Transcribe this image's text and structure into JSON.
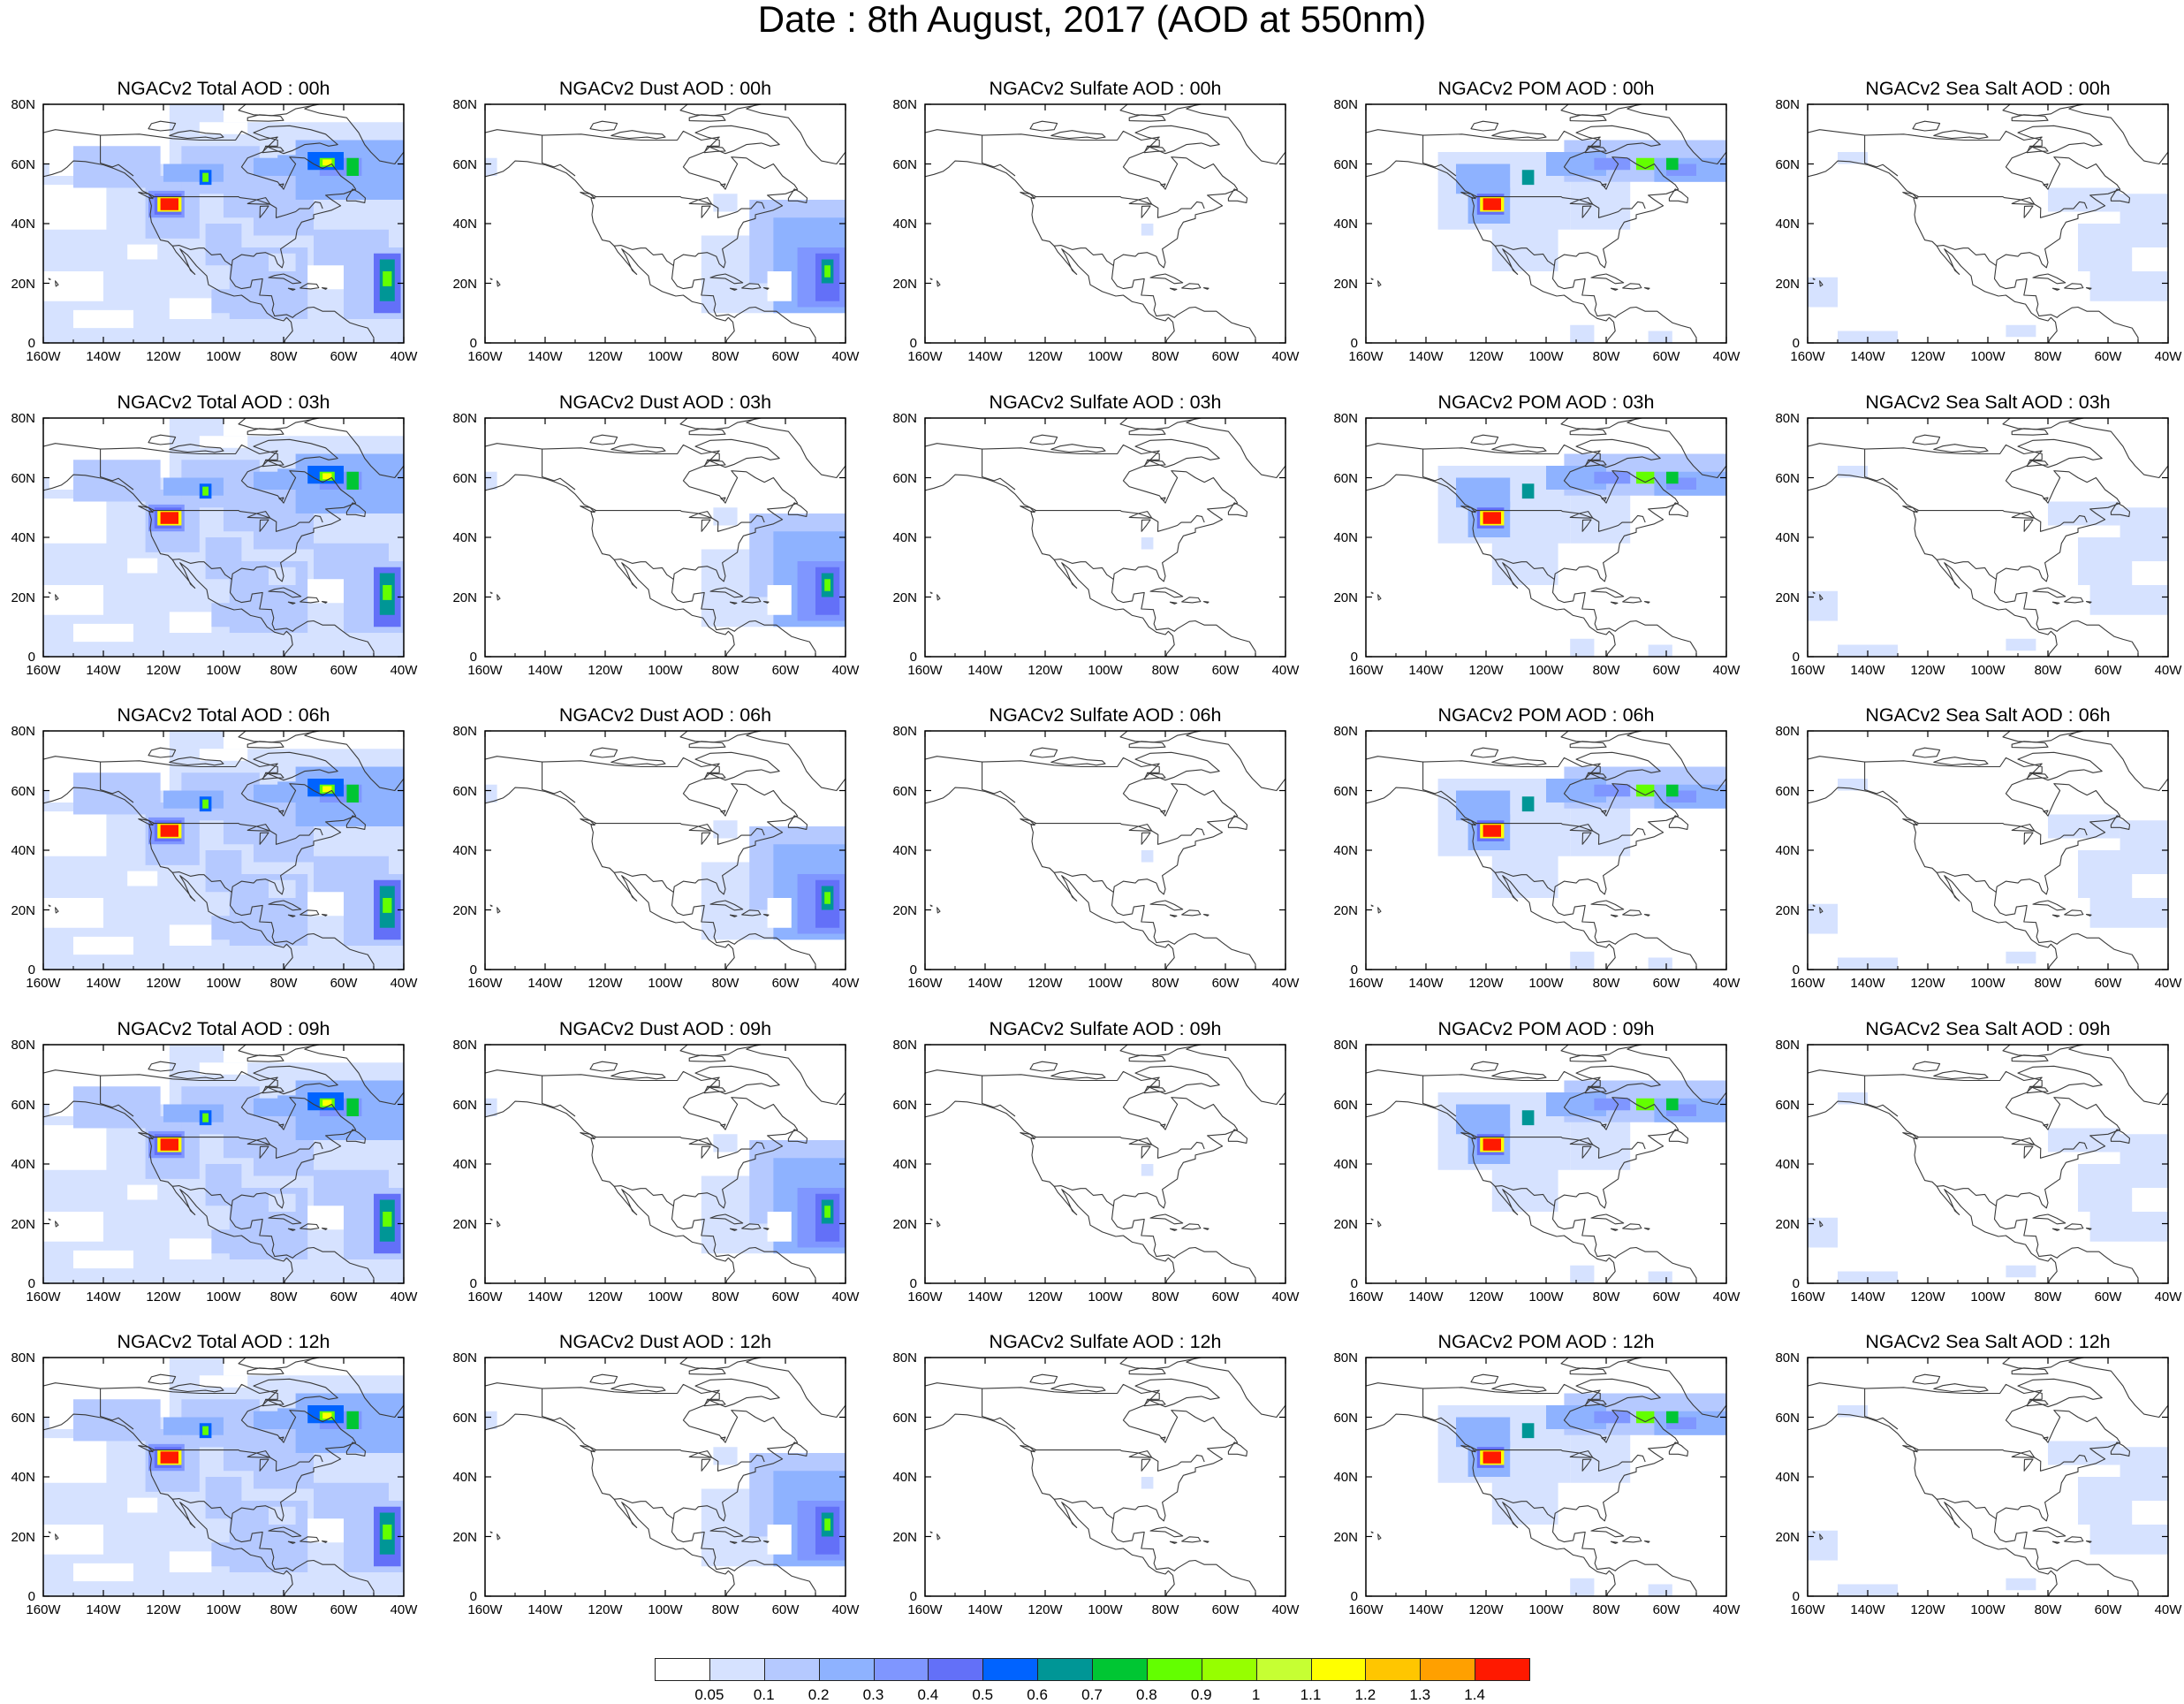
{
  "title": "Date : 8th August, 2017 (AOD at 550nm)",
  "colorbar": {
    "colors": [
      "#ffffff",
      "#d6e2ff",
      "#b5c9ff",
      "#8eb2ff",
      "#7f96ff",
      "#6370f8",
      "#0063ff",
      "#009696",
      "#00c633",
      "#63ff00",
      "#96ff00",
      "#c6ff33",
      "#ffff00",
      "#ffc600",
      "#ffa000",
      "#ff7c00",
      "#ff1900"
    ],
    "labels": [
      "0.05",
      "0.1",
      "0.2",
      "0.3",
      "0.4",
      "0.5",
      "0.6",
      "0.7",
      "0.8",
      "0.9",
      "1",
      "1.1",
      "1.2",
      "1.3",
      "1.4"
    ]
  },
  "axes": {
    "lon_ticks": [
      "160W",
      "140W",
      "120W",
      "100W",
      "80W",
      "60W",
      "40W"
    ],
    "lat_ticks": [
      "0",
      "20N",
      "40N",
      "60N",
      "80N"
    ],
    "lon_range": [
      -160,
      -40
    ],
    "lat_range": [
      0,
      80
    ]
  },
  "panels": [
    {
      "title": "NGACv2 Total AOD : 00h",
      "species": "total"
    },
    {
      "title": "NGACv2 Dust AOD : 00h",
      "species": "dust"
    },
    {
      "title": "NGACv2 Sulfate AOD : 00h",
      "species": "sulfate"
    },
    {
      "title": "NGACv2 POM AOD : 00h",
      "species": "pom"
    },
    {
      "title": "NGACv2 Sea Salt AOD : 00h",
      "species": "seasalt"
    },
    {
      "title": "NGACv2 Total AOD : 03h",
      "species": "total"
    },
    {
      "title": "NGACv2 Dust AOD : 03h",
      "species": "dust"
    },
    {
      "title": "NGACv2 Sulfate AOD : 03h",
      "species": "sulfate"
    },
    {
      "title": "NGACv2 POM AOD : 03h",
      "species": "pom"
    },
    {
      "title": "NGACv2 Sea Salt AOD : 03h",
      "species": "seasalt"
    },
    {
      "title": "NGACv2 Total AOD : 06h",
      "species": "total"
    },
    {
      "title": "NGACv2 Dust AOD : 06h",
      "species": "dust"
    },
    {
      "title": "NGACv2 Sulfate AOD : 06h",
      "species": "sulfate"
    },
    {
      "title": "NGACv2 POM AOD : 06h",
      "species": "pom"
    },
    {
      "title": "NGACv2 Sea Salt AOD : 06h",
      "species": "seasalt"
    },
    {
      "title": "NGACv2 Total AOD : 09h",
      "species": "total"
    },
    {
      "title": "NGACv2 Dust AOD : 09h",
      "species": "dust"
    },
    {
      "title": "NGACv2 Sulfate AOD : 09h",
      "species": "sulfate"
    },
    {
      "title": "NGACv2 POM AOD : 09h",
      "species": "pom"
    },
    {
      "title": "NGACv2 Sea Salt  AOD : 09h",
      "species": "seasalt"
    },
    {
      "title": "NGACv2 Total AOD  : 12h",
      "species": "total"
    },
    {
      "title": "NGACv2 Dust AOD : 12h",
      "species": "dust"
    },
    {
      "title": "NGACv2 Sulfate AOD : 12h",
      "species": "sulfate"
    },
    {
      "title": "NGACv2 POM  AOD : 12h",
      "species": "pom"
    },
    {
      "title": "NGACv2 Sea Salt  AOD : 12h",
      "species": "seasalt"
    }
  ]
}
